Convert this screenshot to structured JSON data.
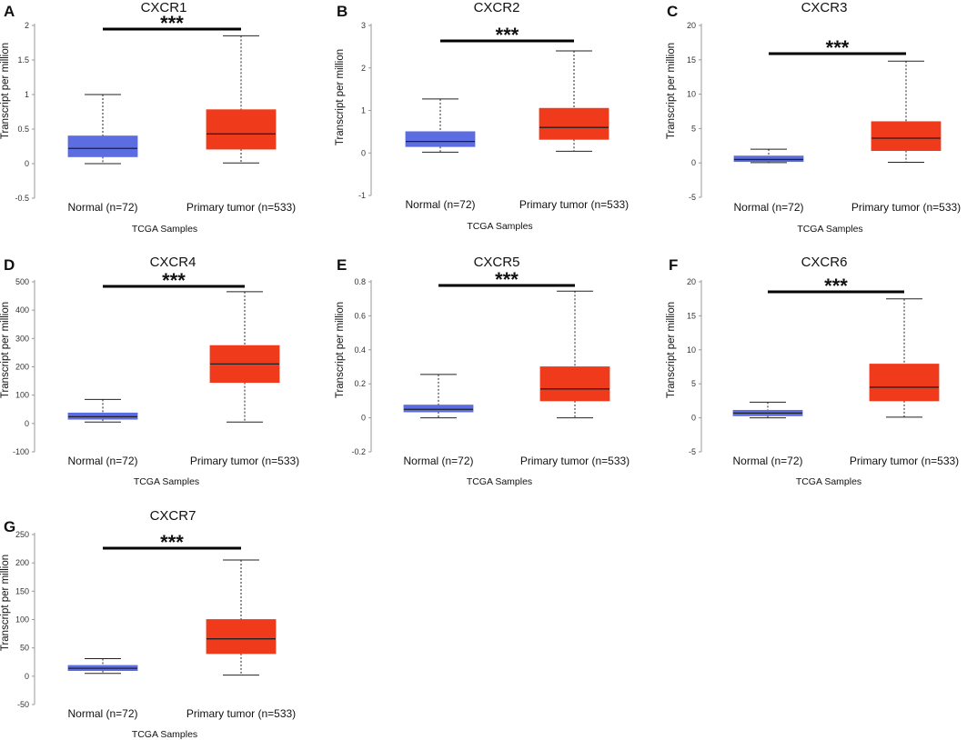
{
  "figure": {
    "colors": {
      "normal": "#5b6de0",
      "tumor": "#f03a1c",
      "median": "#222222",
      "axis": "#9a9a9a"
    }
  },
  "chart_data": [
    {
      "panel": "A",
      "type": "box",
      "title": "CXCR1",
      "ylabel": "Transcript per million",
      "xlabel": "TCGA Samples",
      "ylim": [
        -0.5,
        2
      ],
      "yticks": [
        -0.5,
        0,
        0.5,
        1,
        1.5,
        2
      ],
      "ytick_labels": [
        "-0.5",
        "0",
        "0.5",
        "1",
        "1.5",
        "2"
      ],
      "categories": [
        "Normal (n=72)",
        "Primary tumor (n=533)"
      ],
      "significance": "***",
      "boxes": [
        {
          "name": "Normal",
          "min": 0.0,
          "q1": 0.1,
          "median": 0.22,
          "q3": 0.4,
          "max": 1.0
        },
        {
          "name": "Primary tumor",
          "min": 0.01,
          "q1": 0.21,
          "median": 0.43,
          "q3": 0.78,
          "max": 1.85
        }
      ]
    },
    {
      "panel": "B",
      "type": "box",
      "title": "CXCR2",
      "ylabel": "Transcript per million",
      "xlabel": "TCGA Samples",
      "ylim": [
        -1,
        3
      ],
      "yticks": [
        -1,
        0,
        1,
        2,
        3
      ],
      "ytick_labels": [
        "-1",
        "0",
        "1",
        "2",
        "3"
      ],
      "categories": [
        "Normal (n=72)",
        "Primary tumor (n=533)"
      ],
      "significance": "***",
      "boxes": [
        {
          "name": "Normal",
          "min": 0.02,
          "q1": 0.15,
          "median": 0.27,
          "q3": 0.5,
          "max": 1.27
        },
        {
          "name": "Primary tumor",
          "min": 0.04,
          "q1": 0.32,
          "median": 0.6,
          "q3": 1.05,
          "max": 2.4
        }
      ]
    },
    {
      "panel": "C",
      "type": "box",
      "title": "CXCR3",
      "ylabel": "Transcript per million",
      "xlabel": "TCGA Samples",
      "ylim": [
        -5,
        20
      ],
      "yticks": [
        -5,
        0,
        5,
        10,
        15,
        20
      ],
      "ytick_labels": [
        "-5",
        "0",
        "5",
        "10",
        "15",
        "20"
      ],
      "categories": [
        "Normal (n=72)",
        "Primary tumor (n=533)"
      ],
      "significance": "***",
      "boxes": [
        {
          "name": "Normal",
          "min": 0.05,
          "q1": 0.2,
          "median": 0.5,
          "q3": 1.0,
          "max": 2.0
        },
        {
          "name": "Primary tumor",
          "min": 0.1,
          "q1": 1.8,
          "median": 3.6,
          "q3": 6.0,
          "max": 14.8
        }
      ]
    },
    {
      "panel": "D",
      "type": "box",
      "title": "CXCR4",
      "ylabel": "Transcript per million",
      "xlabel": "TCGA Samples",
      "ylim": [
        -100,
        500
      ],
      "yticks": [
        -100,
        0,
        100,
        200,
        300,
        400,
        500
      ],
      "ytick_labels": [
        "-100",
        "0",
        "100",
        "200",
        "300",
        "400",
        "500"
      ],
      "categories": [
        "Normal (n=72)",
        "Primary tumor (n=533)"
      ],
      "significance": "***",
      "boxes": [
        {
          "name": "Normal",
          "min": 5,
          "q1": 15,
          "median": 24,
          "q3": 37,
          "max": 85
        },
        {
          "name": "Primary tumor",
          "min": 5,
          "q1": 145,
          "median": 210,
          "q3": 275,
          "max": 465
        }
      ]
    },
    {
      "panel": "E",
      "type": "box",
      "title": "CXCR5",
      "ylabel": "Transcript per million",
      "xlabel": "TCGA Samples",
      "ylim": [
        -0.2,
        0.8
      ],
      "yticks": [
        -0.2,
        0,
        0.2,
        0.4,
        0.6,
        0.8
      ],
      "ytick_labels": [
        "-0.2",
        "0",
        "0.2",
        "0.4",
        "0.6",
        "0.8"
      ],
      "categories": [
        "Normal (n=72)",
        "Primary tumor (n=533)"
      ],
      "significance": "***",
      "boxes": [
        {
          "name": "Normal",
          "min": 0.0,
          "q1": 0.035,
          "median": 0.05,
          "q3": 0.075,
          "max": 0.255
        },
        {
          "name": "Primary tumor",
          "min": 0.0,
          "q1": 0.1,
          "median": 0.17,
          "q3": 0.3,
          "max": 0.745
        }
      ]
    },
    {
      "panel": "F",
      "type": "box",
      "title": "CXCR6",
      "ylabel": "Transcript per million",
      "xlabel": "TCGA Samples",
      "ylim": [
        -5,
        20
      ],
      "yticks": [
        -5,
        0,
        5,
        10,
        15,
        20
      ],
      "ytick_labels": [
        "-5",
        "0",
        "5",
        "10",
        "15",
        "20"
      ],
      "categories": [
        "Normal (n=72)",
        "Primary tumor (n=533)"
      ],
      "significance": "***",
      "boxes": [
        {
          "name": "Normal",
          "min": 0.0,
          "q1": 0.3,
          "median": 0.7,
          "q3": 1.1,
          "max": 2.3
        },
        {
          "name": "Primary tumor",
          "min": 0.1,
          "q1": 2.5,
          "median": 4.5,
          "q3": 7.9,
          "max": 17.5
        }
      ]
    },
    {
      "panel": "G",
      "type": "box",
      "title": "CXCR7",
      "ylabel": "Transcript per million",
      "xlabel": "TCGA Samples",
      "ylim": [
        -50,
        250
      ],
      "yticks": [
        -50,
        0,
        50,
        100,
        150,
        200,
        250
      ],
      "ytick_labels": [
        "-50",
        "0",
        "50",
        "100",
        "150",
        "200",
        "250"
      ],
      "categories": [
        "Normal (n=72)",
        "Primary tumor (n=533)"
      ],
      "significance": "***",
      "boxes": [
        {
          "name": "Normal",
          "min": 5,
          "q1": 10,
          "median": 14,
          "q3": 19,
          "max": 31
        },
        {
          "name": "Primary tumor",
          "min": 2,
          "q1": 40,
          "median": 66,
          "q3": 100,
          "max": 205
        }
      ]
    }
  ]
}
